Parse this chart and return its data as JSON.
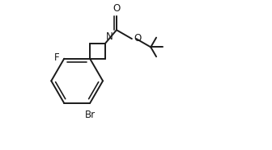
{
  "bg_color": "#ffffff",
  "line_color": "#1a1a1a",
  "line_width": 1.4,
  "font_size": 8.5,
  "label_F": "F",
  "label_Br": "Br",
  "label_N": "N",
  "label_O_carbonyl": "O",
  "label_O_ester": "O",
  "xlim": [
    0,
    10
  ],
  "ylim": [
    0,
    6
  ]
}
